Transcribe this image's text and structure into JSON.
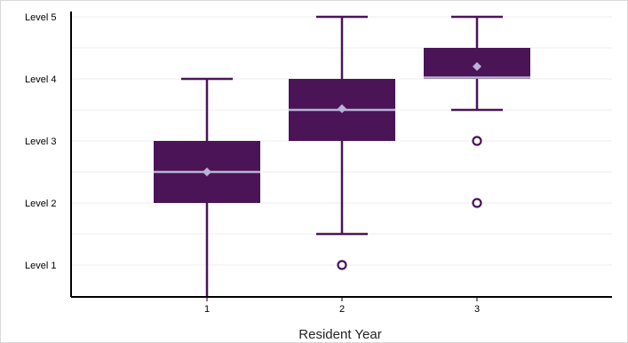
{
  "chart_data": {
    "type": "box",
    "xlabel": "Resident Year",
    "ylabel": "",
    "categories": [
      "1",
      "2",
      "3"
    ],
    "y_ticks": [
      {
        "value": 1,
        "label": "Level 1"
      },
      {
        "value": 2,
        "label": "Level 2"
      },
      {
        "value": 3,
        "label": "Level 3"
      },
      {
        "value": 4,
        "label": "Level 4"
      },
      {
        "value": 5,
        "label": "Level 5"
      }
    ],
    "ylim": [
      0.5,
      5
    ],
    "grid": true,
    "boxes": [
      {
        "category": "1",
        "whisker_low": 0.5,
        "q1": 2,
        "median": 2.5,
        "q3": 3,
        "whisker_high": 4,
        "mean": 2.5,
        "outliers": []
      },
      {
        "category": "2",
        "whisker_low": 1.5,
        "q1": 3,
        "median": 3.5,
        "q3": 4,
        "whisker_high": 5,
        "mean": 3.52,
        "outliers": [
          1
        ]
      },
      {
        "category": "3",
        "whisker_low": 3.5,
        "q1": 4,
        "median": 4,
        "q3": 4.5,
        "whisker_high": 5,
        "mean": 4.2,
        "outliers": [
          3,
          2
        ]
      }
    ],
    "colors": {
      "box": "#4a1457",
      "median": "#b8b3d6",
      "mean": "#b8b3d6",
      "grid": "#ececec",
      "axis": "#000000"
    }
  }
}
